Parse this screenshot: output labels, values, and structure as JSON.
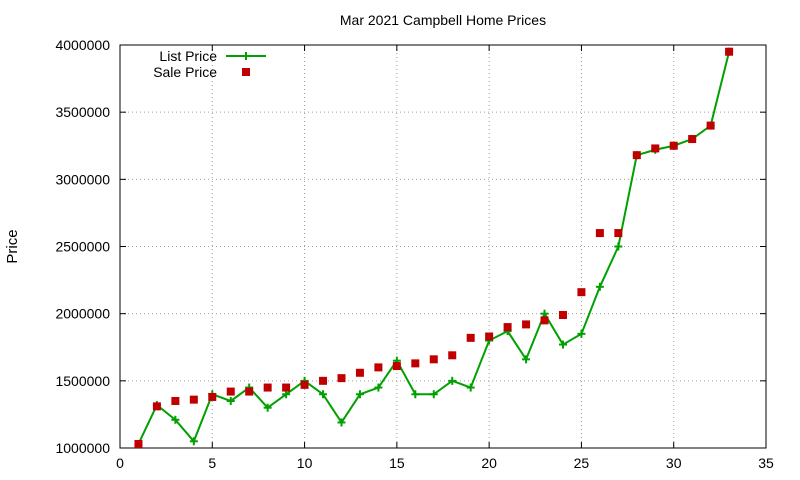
{
  "chart_data": {
    "type": "line",
    "title": "Mar 2021 Campbell Home Prices",
    "xlabel": "",
    "ylabel": "Price",
    "xlim": [
      0,
      35
    ],
    "ylim": [
      1000000,
      4000000
    ],
    "xticks": [
      0,
      5,
      10,
      15,
      20,
      25,
      30,
      35
    ],
    "yticks": [
      1000000,
      1500000,
      2000000,
      2500000,
      3000000,
      3500000,
      4000000
    ],
    "grid": true,
    "legend_position": "top-left",
    "series": [
      {
        "name": "List Price",
        "style": "line-with-plus-markers",
        "color": "#00a000",
        "x": [
          1,
          2,
          3,
          4,
          5,
          6,
          7,
          8,
          9,
          10,
          11,
          12,
          13,
          14,
          15,
          16,
          17,
          18,
          19,
          20,
          21,
          22,
          23,
          24,
          25,
          26,
          27,
          28,
          29,
          30,
          31,
          32,
          33
        ],
        "y": [
          1030000,
          1320000,
          1210000,
          1050000,
          1400000,
          1350000,
          1450000,
          1300000,
          1400000,
          1500000,
          1400000,
          1190000,
          1400000,
          1450000,
          1650000,
          1400000,
          1400000,
          1500000,
          1450000,
          1800000,
          1870000,
          1660000,
          2000000,
          1770000,
          1850000,
          2200000,
          2500000,
          3180000,
          3220000,
          3250000,
          3300000,
          3400000,
          3950000
        ]
      },
      {
        "name": "Sale Price",
        "style": "square-markers",
        "color": "#c00000",
        "x": [
          1,
          2,
          3,
          4,
          5,
          6,
          7,
          8,
          9,
          10,
          11,
          12,
          13,
          14,
          15,
          16,
          17,
          18,
          19,
          20,
          21,
          22,
          23,
          24,
          25,
          26,
          27,
          28,
          29,
          30,
          31,
          32,
          33
        ],
        "y": [
          1030000,
          1310000,
          1350000,
          1360000,
          1380000,
          1420000,
          1420000,
          1450000,
          1450000,
          1470000,
          1500000,
          1520000,
          1560000,
          1600000,
          1610000,
          1630000,
          1660000,
          1690000,
          1820000,
          1830000,
          1900000,
          1920000,
          1950000,
          1990000,
          2160000,
          2600000,
          2600000,
          3180000,
          3230000,
          3250000,
          3300000,
          3400000,
          3950000
        ]
      }
    ]
  }
}
